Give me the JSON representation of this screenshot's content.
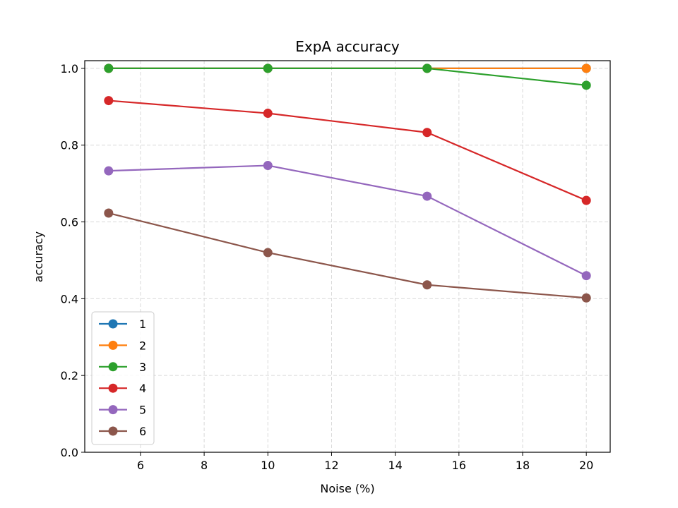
{
  "chart_data": {
    "type": "line",
    "title": "ExpA accuracy",
    "xlabel": "Noise (%)",
    "ylabel": "accuracy",
    "x": [
      5,
      10,
      15,
      20
    ],
    "xlim": [
      4.25,
      20.75
    ],
    "ylim": [
      0.0,
      1.02
    ],
    "xticks": [
      6,
      8,
      10,
      12,
      14,
      16,
      18,
      20
    ],
    "yticks": [
      0.0,
      0.2,
      0.4,
      0.6,
      0.8,
      1.0
    ],
    "xtick_labels": [
      "6",
      "8",
      "10",
      "12",
      "14",
      "16",
      "18",
      "20"
    ],
    "ytick_labels": [
      "0.0",
      "0.2",
      "0.4",
      "0.6",
      "0.8",
      "1.0"
    ],
    "grid": true,
    "legend_position": "lower-left",
    "series": [
      {
        "name": "1",
        "color": "#1f77b4",
        "values": [
          1.0,
          1.0,
          1.0,
          1.0
        ]
      },
      {
        "name": "2",
        "color": "#ff7f0e",
        "values": [
          1.0,
          1.0,
          1.0,
          1.0
        ]
      },
      {
        "name": "3",
        "color": "#2ca02c",
        "values": [
          1.0,
          1.0,
          1.0,
          0.956
        ]
      },
      {
        "name": "4",
        "color": "#d62728",
        "values": [
          0.916,
          0.883,
          0.833,
          0.656
        ]
      },
      {
        "name": "5",
        "color": "#9467bd",
        "values": [
          0.733,
          0.747,
          0.667,
          0.46
        ]
      },
      {
        "name": "6",
        "color": "#8c564b",
        "values": [
          0.623,
          0.52,
          0.436,
          0.402
        ]
      }
    ]
  }
}
